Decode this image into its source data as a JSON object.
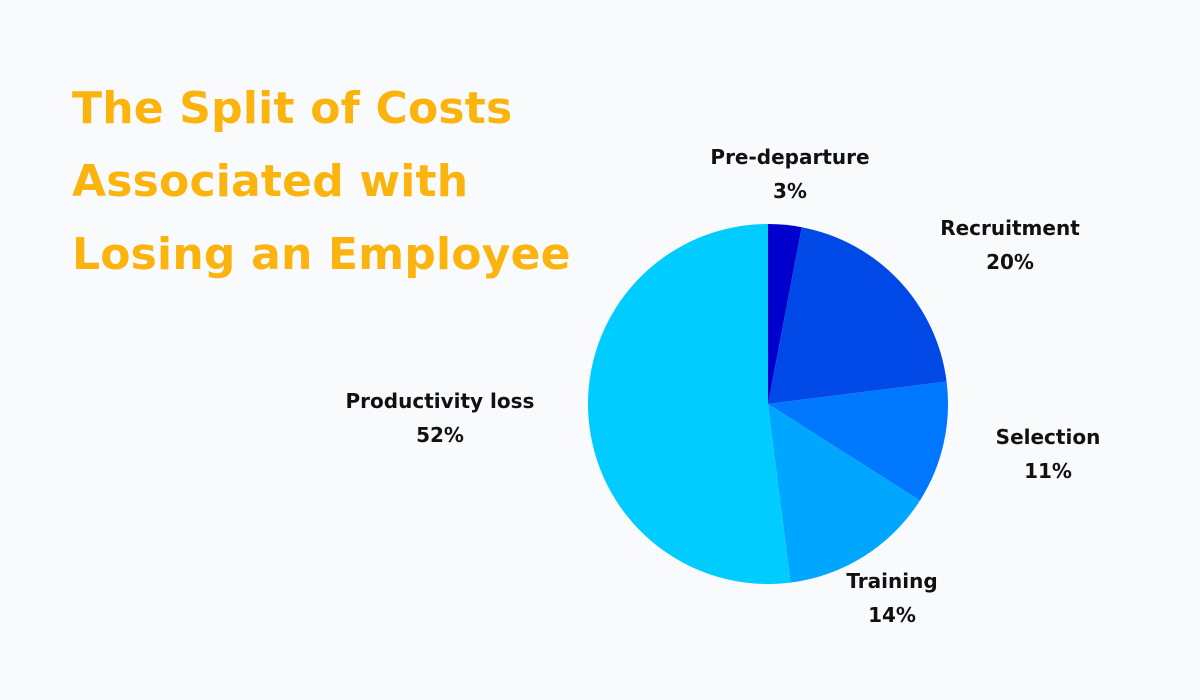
{
  "chart_data": {
    "type": "pie",
    "title_lines": [
      "The Split of Costs",
      "Associated with",
      "Losing an Employee"
    ],
    "slices": [
      {
        "label": "Pre-departure",
        "value": 3,
        "display": "3%",
        "color": "#0000cc"
      },
      {
        "label": "Recruitment",
        "value": 20,
        "display": "20%",
        "color": "#0049e6"
      },
      {
        "label": "Selection",
        "value": 11,
        "display": "11%",
        "color": "#0077ff"
      },
      {
        "label": "Training",
        "value": 14,
        "display": "14%",
        "color": "#00a6ff"
      },
      {
        "label": "Productivity loss",
        "value": 52,
        "display": "52%",
        "color": "#00ccff"
      }
    ],
    "start_angle": "12 o'clock",
    "direction": "clockwise",
    "legend": "none",
    "labels": "outside"
  }
}
